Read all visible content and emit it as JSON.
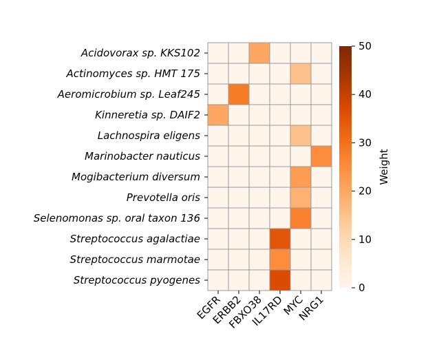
{
  "chart_data": {
    "type": "heatmap",
    "title": "",
    "xlabel": "",
    "ylabel": "",
    "rows": [
      "Acidovorax sp. KKS102",
      "Actinomyces sp. HMT 175",
      "Aeromicrobium sp. Leaf245",
      "Kinneretia sp. DAIF2",
      "Lachnospira eligens",
      "Marinobacter nauticus",
      "Mogibacterium diversum",
      "Prevotella oris",
      "Selenomonas sp. oral taxon 136",
      "Streptococcus agalactiae",
      "Streptococcus marmotae",
      "Streptococcus pyogenes"
    ],
    "columns": [
      "EGFR",
      "ERBB2",
      "FBXO38",
      "IL17RD",
      "MYC",
      "NRG1"
    ],
    "values": [
      [
        0,
        0,
        20,
        0,
        0,
        0
      ],
      [
        0,
        0,
        0,
        0,
        15,
        0
      ],
      [
        0,
        28,
        0,
        0,
        0,
        0
      ],
      [
        20,
        0,
        0,
        0,
        0,
        0
      ],
      [
        0,
        0,
        0,
        0,
        15,
        0
      ],
      [
        0,
        0,
        0,
        0,
        0,
        25
      ],
      [
        0,
        0,
        0,
        0,
        22,
        0
      ],
      [
        0,
        0,
        0,
        0,
        18,
        0
      ],
      [
        0,
        0,
        0,
        0,
        27,
        0
      ],
      [
        0,
        0,
        0,
        35,
        0,
        0
      ],
      [
        0,
        0,
        0,
        25,
        0,
        0
      ],
      [
        0,
        0,
        0,
        37,
        0,
        0
      ]
    ],
    "colorbar": {
      "label": "Weight",
      "min": 0,
      "max": 50,
      "ticks": [
        0,
        10,
        20,
        30,
        40,
        50
      ],
      "colormap": "Oranges"
    },
    "grid_color": "#999999"
  }
}
